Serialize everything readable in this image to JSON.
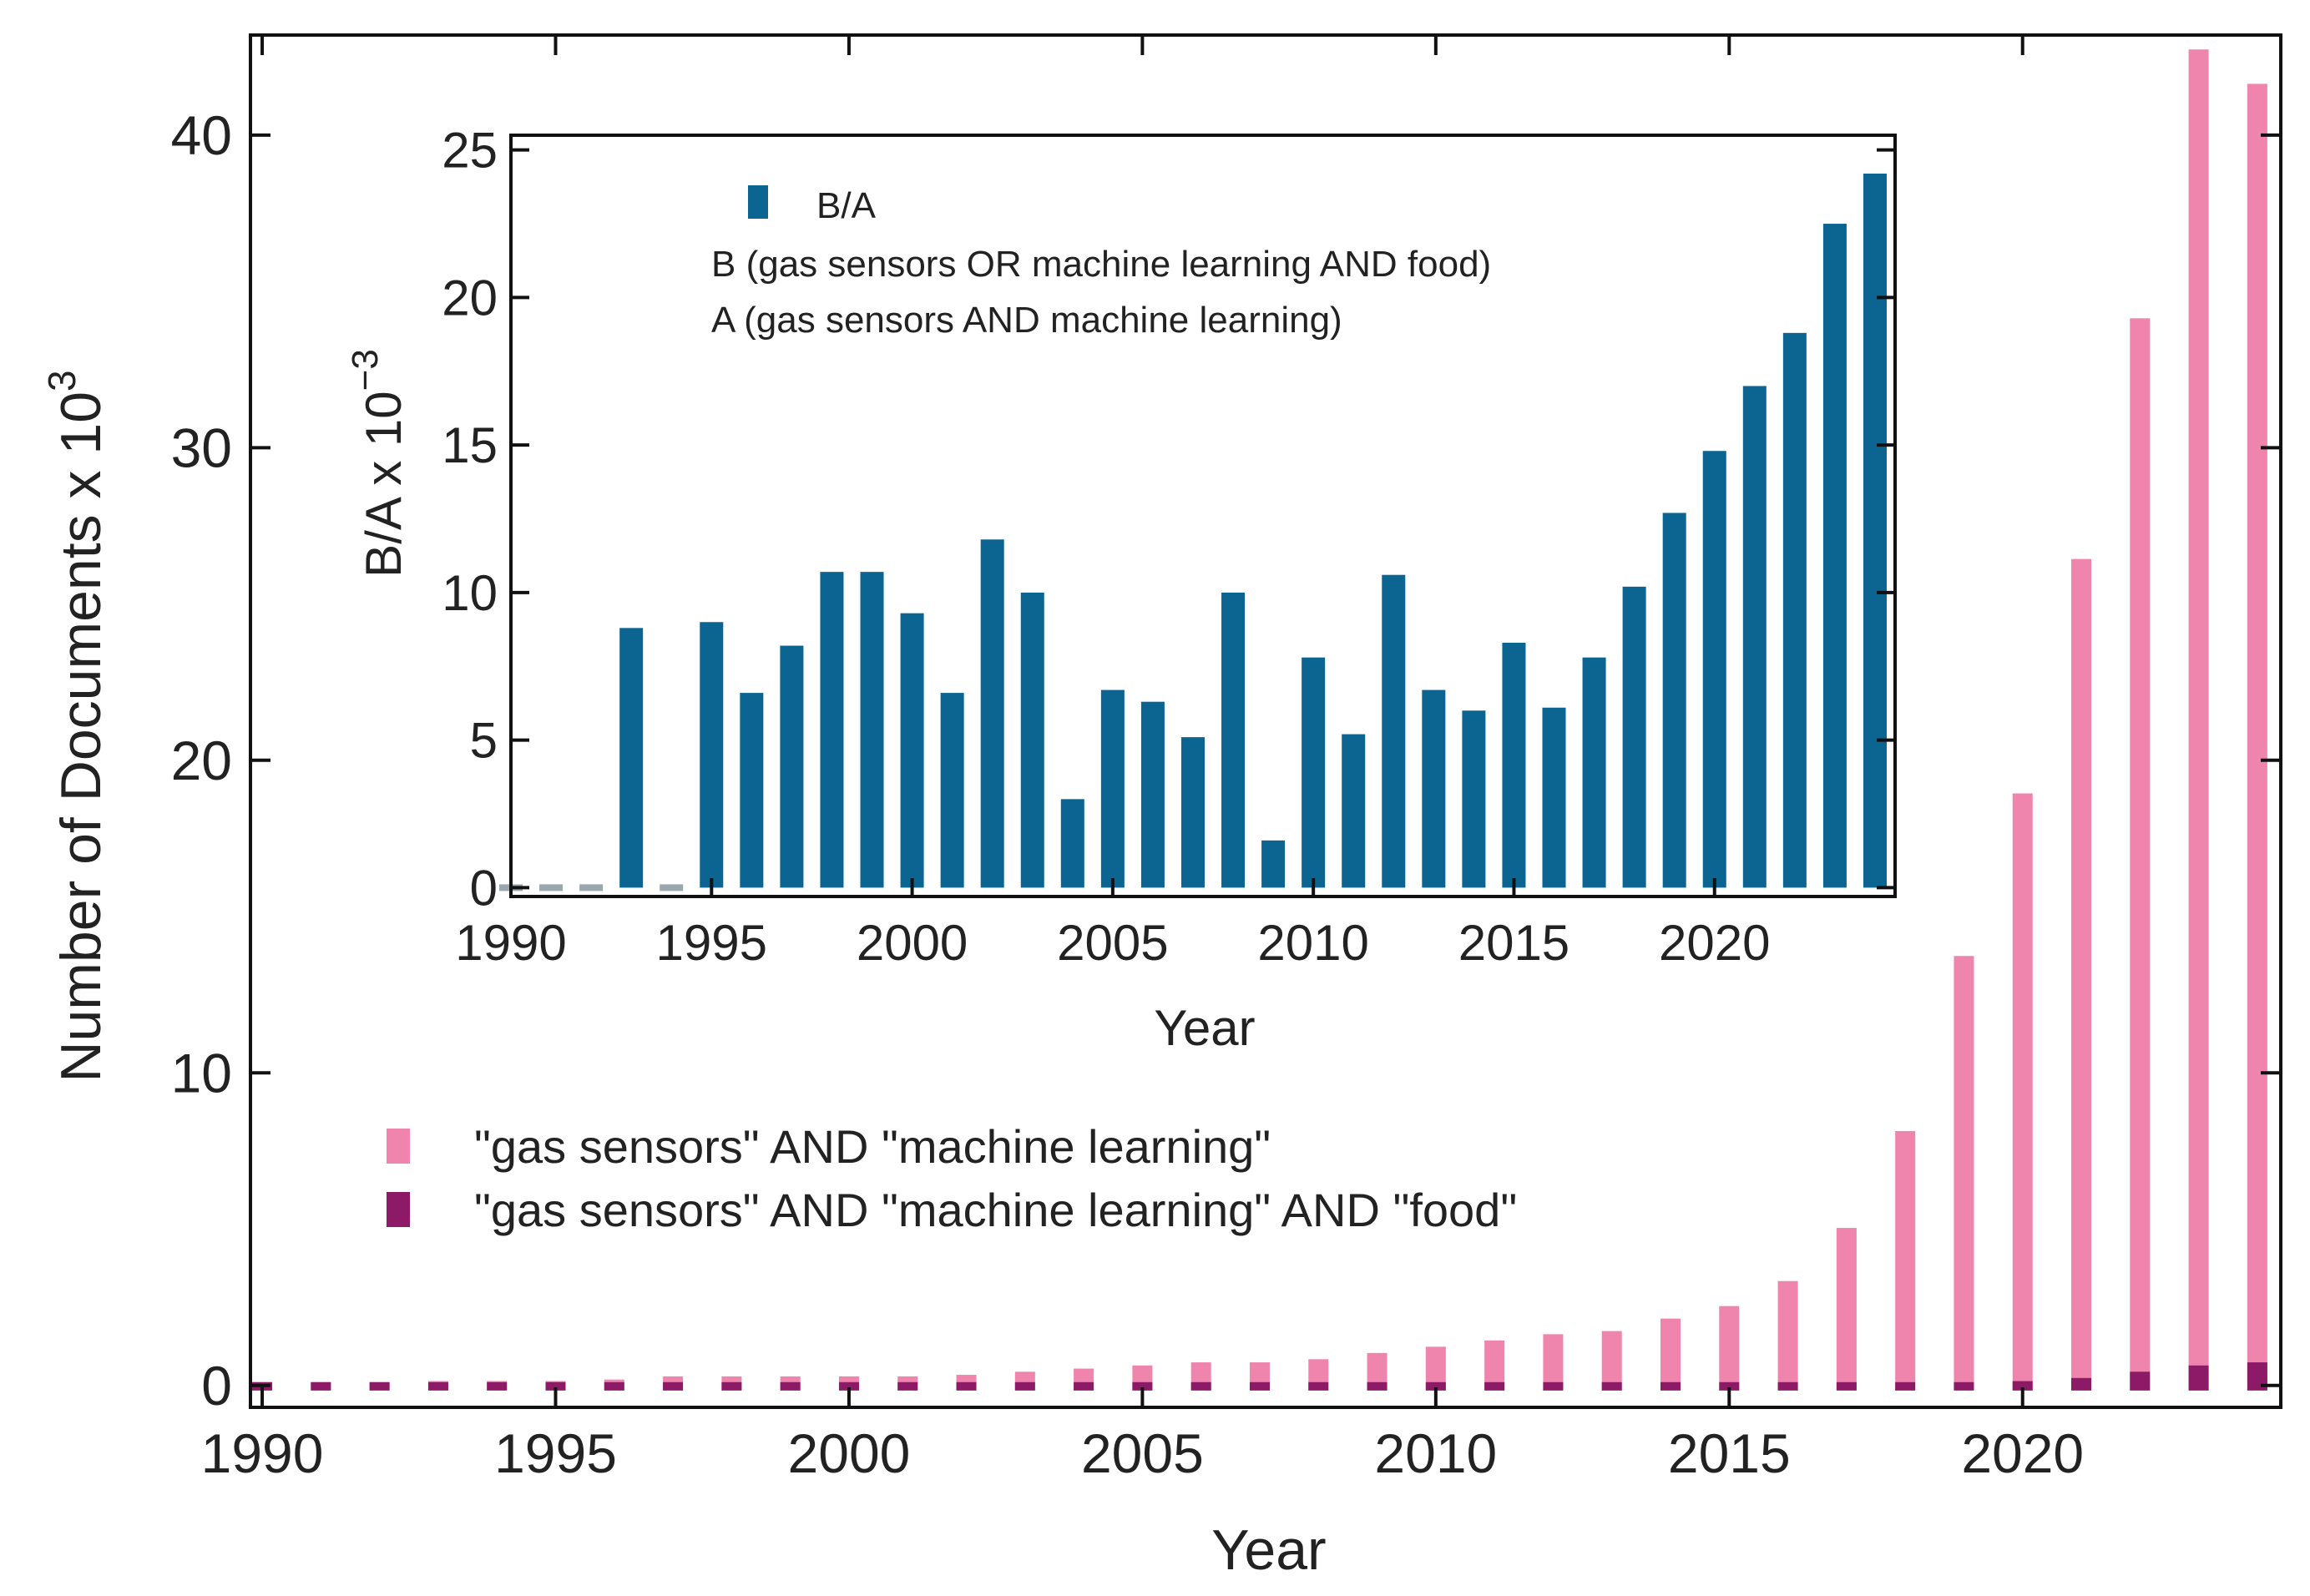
{
  "colors": {
    "series_a": "#ef85ad",
    "series_b": "#8c1a66",
    "inset_bar": "#0c6491",
    "inset_zero": "#9aa8ae"
  },
  "chart_data": [
    {
      "type": "bar",
      "stacking": "overlay",
      "xlabel": "Year",
      "ylabel": "Number of Documents x 10",
      "ylabel_exponent": "3",
      "xlim": [
        1989.8,
        2024.4
      ],
      "ylim": [
        -0.7,
        43.2
      ],
      "xticks": [
        1990,
        1995,
        2000,
        2005,
        2010,
        2015,
        2020
      ],
      "yticks": [
        0,
        10,
        20,
        30,
        40
      ],
      "legend_position": "center-left",
      "x": [
        1990,
        1991,
        1992,
        1993,
        1994,
        1995,
        1996,
        1997,
        1998,
        1999,
        2000,
        2001,
        2002,
        2003,
        2004,
        2005,
        2006,
        2007,
        2008,
        2009,
        2010,
        2011,
        2012,
        2013,
        2014,
        2015,
        2016,
        2017,
        2018,
        2019,
        2020,
        2021,
        2022,
        2023,
        2024
      ],
      "series": [
        {
          "name": "\"gas sensors\" AND \"machine learning\"",
          "color_key": "series_a",
          "values": [
            0.15,
            0.2,
            0.2,
            0.3,
            0.3,
            0.3,
            0.35,
            0.45,
            0.45,
            0.45,
            0.45,
            0.45,
            0.5,
            0.6,
            0.7,
            0.8,
            0.9,
            0.9,
            1.0,
            1.2,
            1.4,
            1.6,
            1.8,
            1.9,
            2.3,
            2.7,
            3.5,
            5.2,
            8.3,
            13.9,
            19.1,
            26.6,
            34.3,
            42.9,
            41.8
          ]
        },
        {
          "name": "\"gas sensors\" AND \"machine learning\" AND \"food\"",
          "color_key": "series_b",
          "values": [
            0.0,
            0.0,
            0.0,
            0.0,
            0.0,
            0.0,
            0.0,
            0.0,
            0.0,
            0.0,
            0.0,
            0.0,
            0.0,
            0.0,
            0.0,
            0.0,
            0.0,
            0.0,
            0.0,
            0.0,
            0.0,
            0.0,
            0.0,
            0.0,
            0.0,
            0.0,
            0.0,
            0.0,
            0.1,
            0.2,
            0.3,
            0.4,
            0.6,
            0.8,
            0.9
          ]
        }
      ]
    },
    {
      "type": "bar",
      "inset": true,
      "xlabel": "Year",
      "ylabel": "B/A x 10",
      "ylabel_exponent": "−3",
      "xlim": [
        1990,
        2024.5
      ],
      "ylim": [
        -0.3,
        25.5
      ],
      "xticks": [
        1990,
        1995,
        2000,
        2005,
        2010,
        2015,
        2020
      ],
      "yticks": [
        0,
        5,
        10,
        15,
        20,
        25
      ],
      "legend_position": "top-left",
      "legend": {
        "series_label": "B/A",
        "note_b": "B (gas sensors OR machine learning AND food)",
        "note_a": "A (gas sensors AND machine learning)"
      },
      "x": [
        1990,
        1991,
        1992,
        1993,
        1994,
        1995,
        1996,
        1997,
        1998,
        1999,
        2000,
        2001,
        2002,
        2003,
        2004,
        2005,
        2006,
        2007,
        2008,
        2009,
        2010,
        2011,
        2012,
        2013,
        2014,
        2015,
        2016,
        2017,
        2018,
        2019,
        2020,
        2021,
        2022,
        2023,
        2024
      ],
      "series": [
        {
          "name": "B/A",
          "color_key": "inset_bar",
          "values": [
            0,
            0,
            0,
            8.8,
            0,
            9.0,
            6.6,
            8.2,
            10.7,
            10.7,
            9.3,
            6.6,
            11.8,
            10.0,
            3.0,
            6.7,
            6.3,
            5.1,
            10.0,
            1.6,
            7.8,
            5.2,
            10.6,
            6.7,
            6.0,
            8.3,
            6.1,
            7.8,
            10.2,
            12.7,
            14.8,
            17.0,
            18.8,
            22.5,
            24.2
          ]
        }
      ]
    }
  ]
}
